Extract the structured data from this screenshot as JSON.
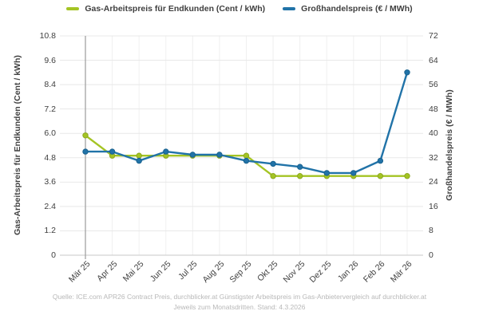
{
  "legend": [
    {
      "label": "Gas-Arbeitspreis für Endkunden (Cent / kWh)",
      "color": "#a4c424"
    },
    {
      "label": "Großhandelspreis (€ / MWh)",
      "color": "#2173a8"
    }
  ],
  "chart_data": {
    "type": "line",
    "categories": [
      "Mär 25",
      "Apr 25",
      "Mai 25",
      "Jun 25",
      "Jul 25",
      "Aug 25",
      "Sep 25",
      "Okt 25",
      "Nov 25",
      "Dez 25",
      "Jan 26",
      "Feb 26",
      "Mär 26"
    ],
    "series": [
      {
        "id": "endkunden",
        "name": "Gas-Arbeitspreis für Endkunden (Cent / kWh)",
        "axis": "left",
        "color": "#a4c424",
        "marker_stroke": "#8ca81e",
        "values": [
          5.9,
          4.9,
          4.9,
          4.9,
          4.9,
          4.9,
          4.9,
          3.9,
          3.9,
          3.9,
          3.9,
          3.9,
          3.9
        ]
      },
      {
        "id": "grosshandel",
        "name": "Großhandelspreis (€ / MWh)",
        "axis": "right",
        "color": "#2173a8",
        "marker_stroke": "#1a628f",
        "values": [
          34,
          34,
          31,
          34,
          33,
          33,
          31,
          30,
          29,
          27,
          27,
          31,
          60
        ]
      }
    ],
    "left_axis": {
      "label": "Gas-Arbeitspreis für Endkunden (Cent / kWh)",
      "min": 0,
      "max": 10.8,
      "ticks": [
        "0",
        "1.2",
        "2.4",
        "3.6",
        "4.8",
        "6.0",
        "7.2",
        "8.4",
        "9.6",
        "10.8"
      ]
    },
    "right_axis": {
      "label": "Großhandelspreis (€ / MWh)",
      "min": 0,
      "max": 72,
      "ticks": [
        "0",
        "8",
        "16",
        "24",
        "32",
        "40",
        "48",
        "56",
        "64",
        "72"
      ]
    },
    "grid": true,
    "legend_position": "top",
    "highlighted_category": "Mär 25"
  },
  "footer": {
    "line1": "Quelle: ICE.com APR26 Contract Preis, durchblicker.at Günstigster Arbeitspreis im Gas-Anbietervergleich auf durchblicker.at",
    "line2": "Jeweils zum Monatsdritten. Stand: 4.3.2026"
  },
  "colors": {
    "grid_h": "#e8e8e8",
    "grid_v": "#f0f0f0",
    "axis_line": "#c8c8c8",
    "marker_line": "#9b9b9b",
    "text": "#3f3f3f",
    "footer_text": "#b8b8b8"
  }
}
